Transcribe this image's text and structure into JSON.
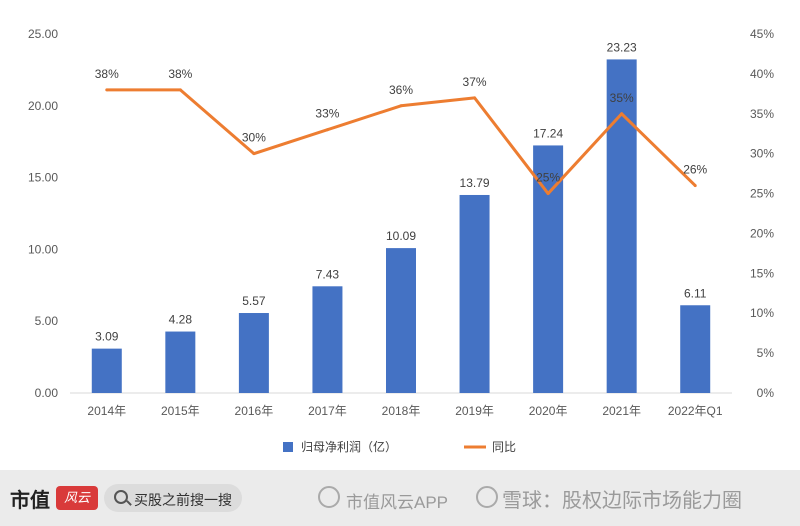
{
  "chart_data": {
    "type": "bar",
    "categories": [
      "2014年",
      "2015年",
      "2016年",
      "2017年",
      "2018年",
      "2019年",
      "2020年",
      "2021年",
      "2022年Q1"
    ],
    "series": [
      {
        "name": "归母净利润（亿）",
        "type": "bar",
        "axis": "left",
        "color": "#4472c4",
        "values": [
          3.09,
          4.28,
          5.57,
          7.43,
          10.09,
          13.79,
          17.24,
          23.23,
          6.11
        ],
        "labels": [
          "3.09",
          "4.28",
          "5.57",
          "7.43",
          "10.09",
          "13.79",
          "17.24",
          "23.23",
          "6.11"
        ]
      },
      {
        "name": "同比",
        "type": "line",
        "axis": "right",
        "color": "#ed7d31",
        "values": [
          38,
          38,
          30,
          33,
          36,
          37,
          25,
          35,
          26
        ],
        "labels": [
          "38%",
          "38%",
          "30%",
          "33%",
          "36%",
          "37%",
          "25%",
          "35%",
          "26%"
        ]
      }
    ],
    "ylim": [
      0,
      25
    ],
    "yticks": [
      "0.00",
      "5.00",
      "10.00",
      "15.00",
      "20.00",
      "25.00"
    ],
    "y2lim": [
      0,
      45
    ],
    "y2ticks": [
      "0%",
      "5%",
      "10%",
      "15%",
      "20%",
      "25%",
      "30%",
      "35%",
      "40%",
      "45%"
    ],
    "grid": false,
    "legend": "bottom"
  },
  "footer": {
    "brand": "市值",
    "brand_logo": "风云",
    "search_placeholder": "买股之前搜一搜",
    "watermark_app": "市值风云APP",
    "watermark_xueqiu": "雪球：股权边际市场能力圈"
  }
}
